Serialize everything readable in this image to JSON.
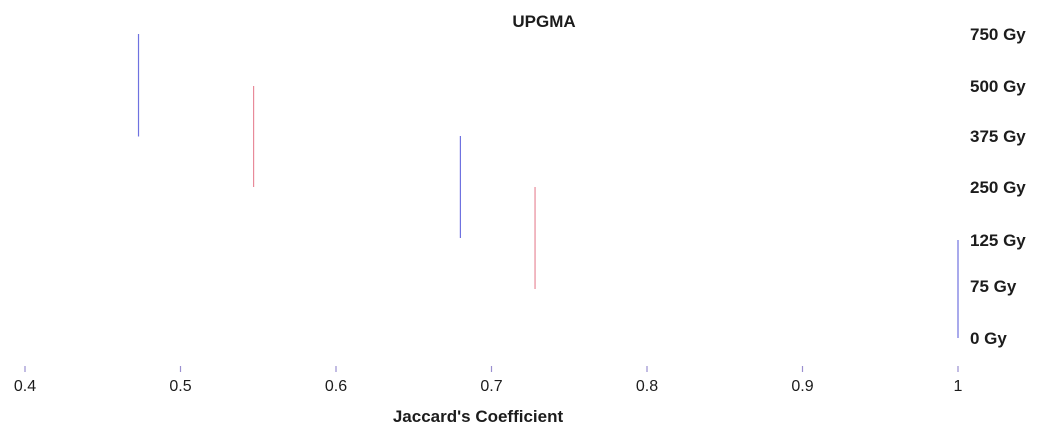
{
  "chart_data": {
    "type": "dendrogram",
    "title": "UPGMA",
    "xlabel": "Jaccard's Coefficient",
    "xlim": [
      0.4,
      1.0
    ],
    "ticks": [
      "0.4",
      "0.5",
      "0.6",
      "0.7",
      "0.8",
      "0.9",
      "1"
    ],
    "leaves": [
      "750 Gy",
      "500 Gy",
      "375 Gy",
      "250 Gy",
      "125 Gy",
      "75 Gy",
      "0 Gy"
    ],
    "merges": [
      {
        "members": [
          "125 Gy",
          "75 Gy",
          "0 Gy"
        ],
        "similarity": 1.0
      },
      {
        "members": [
          "250 Gy",
          "125 Gy",
          "75 Gy",
          "0 Gy"
        ],
        "similarity": 0.728
      },
      {
        "members": [
          "375 Gy",
          "250 Gy",
          "125 Gy",
          "75 Gy",
          "0 Gy"
        ],
        "similarity": 0.68
      },
      {
        "members": [
          "500 Gy",
          "375 Gy",
          "250 Gy",
          "125 Gy",
          "75 Gy",
          "0 Gy"
        ],
        "similarity": 0.547
      },
      {
        "members": [
          "750 Gy",
          "500 Gy",
          "375 Gy",
          "250 Gy",
          "125 Gy",
          "75 Gy",
          "0 Gy"
        ],
        "similarity": 0.473
      }
    ],
    "colors": {
      "line_blue": "#6f72e0",
      "line_pink": "#d46fb4",
      "line_green": "#a8d87a",
      "line_red": "#e88a9a"
    }
  }
}
